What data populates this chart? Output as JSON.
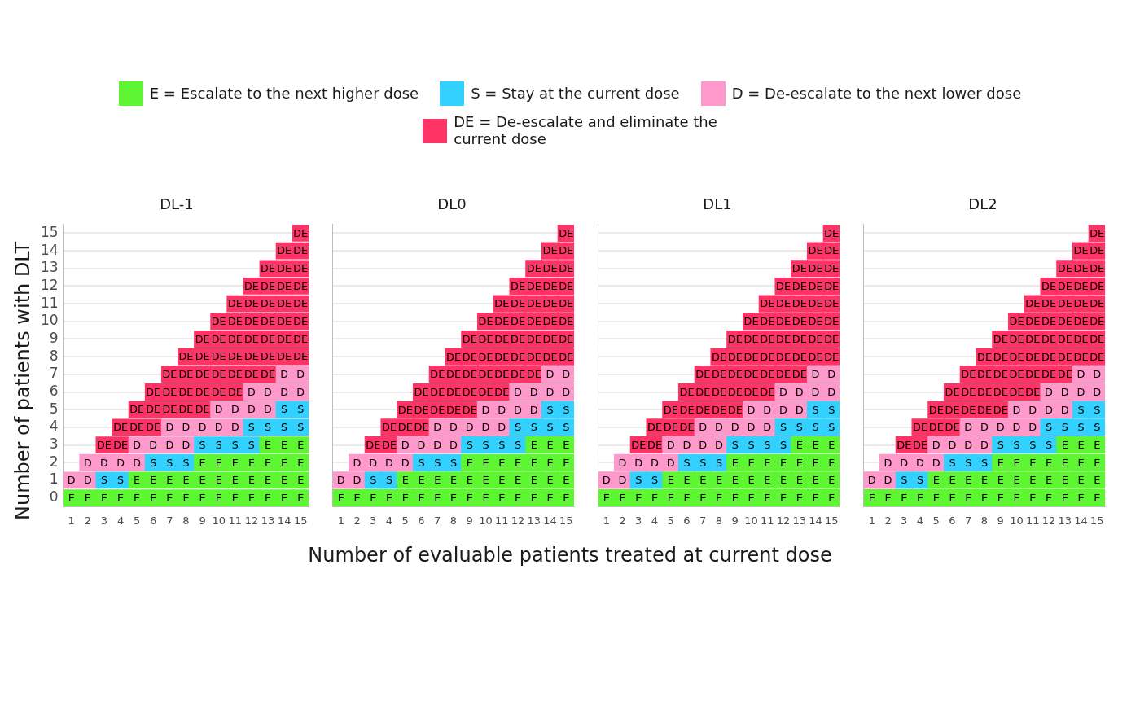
{
  "chart_data": [
    {
      "type": "scatter",
      "marker": "square",
      "title": "DL-1",
      "xlabel": "Number of evaluable patients treated at current dose",
      "ylabel": "Number of patients with DLT",
      "legend": "top",
      "grid": "y",
      "xlim": [
        0.5,
        15.5
      ],
      "xticks": [
        1,
        2,
        3,
        4,
        5,
        6,
        7,
        8,
        9,
        10,
        11,
        12,
        13,
        14,
        15
      ],
      "ylim": [
        -0.5,
        15.5
      ],
      "yticks": [
        0,
        1,
        2,
        3,
        4,
        5,
        6,
        7,
        8,
        9,
        10,
        11,
        12,
        13,
        14,
        15
      ],
      "series": [
        {
          "name": "E = Escalate to the next higher dose",
          "color": "#5ef532",
          "x": [
            1,
            2,
            3,
            4,
            5,
            5,
            6,
            6,
            7,
            7,
            8,
            8,
            9,
            9,
            9,
            10,
            10,
            10,
            11,
            11,
            11,
            12,
            12,
            12,
            13,
            13,
            13,
            13,
            14,
            14,
            14,
            14,
            15,
            15,
            15,
            15
          ],
          "values": [
            0,
            0,
            0,
            0,
            0,
            1,
            0,
            1,
            0,
            1,
            0,
            1,
            0,
            1,
            2,
            0,
            1,
            2,
            0,
            1,
            2,
            0,
            1,
            2,
            0,
            1,
            2,
            3,
            0,
            1,
            2,
            3,
            0,
            1,
            2,
            3
          ],
          "value_labels": [
            "E",
            "E",
            "E",
            "E",
            "E",
            "E",
            "E",
            "E",
            "E",
            "E",
            "E",
            "E",
            "E",
            "E",
            "E",
            "E",
            "E",
            "E",
            "E",
            "E",
            "E",
            "E",
            "E",
            "E",
            "E",
            "E",
            "E",
            "E",
            "E",
            "E",
            "E",
            "E",
            "E",
            "E",
            "E",
            "E"
          ]
        },
        {
          "name": "S = Stay at the current dose",
          "color": "#33d1ff",
          "x": [
            3,
            4,
            6,
            7,
            8,
            9,
            10,
            11,
            12,
            12,
            13,
            14,
            14,
            15,
            15
          ],
          "values": [
            1,
            1,
            2,
            2,
            2,
            3,
            3,
            3,
            3,
            4,
            4,
            4,
            5,
            4,
            5
          ],
          "value_labels": [
            "S",
            "S",
            "S",
            "S",
            "S",
            "S",
            "S",
            "S",
            "S",
            "S",
            "S",
            "S",
            "S",
            "S",
            "S"
          ]
        },
        {
          "name": "D = De-escalate to the next lower dose",
          "color": "#ff99cc",
          "x": [
            1,
            2,
            2,
            3,
            4,
            5,
            5,
            6,
            7,
            7,
            8,
            8,
            9,
            10,
            10,
            11,
            11,
            12,
            12,
            13,
            13,
            14,
            14,
            15,
            15
          ],
          "values": [
            1,
            1,
            2,
            2,
            2,
            2,
            3,
            3,
            3,
            4,
            3,
            4,
            4,
            4,
            5,
            4,
            5,
            5,
            6,
            5,
            6,
            6,
            7,
            6,
            7
          ],
          "value_labels": [
            "D",
            "D",
            "D",
            "D",
            "D",
            "D",
            "D",
            "D",
            "D",
            "D",
            "D",
            "D",
            "D",
            "D",
            "D",
            "D",
            "D",
            "D",
            "D",
            "D",
            "D",
            "D",
            "D",
            "D",
            "D"
          ]
        },
        {
          "name": "DE = De-escalate and eliminate the\ncurrent dose",
          "color": "#ff3366",
          "x": [
            3,
            4,
            4,
            5,
            5,
            6,
            6,
            6,
            7,
            7,
            7,
            8,
            8,
            8,
            8,
            9,
            9,
            9,
            9,
            9,
            10,
            10,
            10,
            10,
            10,
            11,
            11,
            11,
            11,
            11,
            11,
            12,
            12,
            12,
            12,
            12,
            12,
            13,
            13,
            13,
            13,
            13,
            13,
            13,
            14,
            14,
            14,
            14,
            14,
            14,
            14,
            15,
            15,
            15,
            15,
            15,
            15,
            15,
            15
          ],
          "values": [
            3,
            3,
            4,
            4,
            5,
            4,
            5,
            6,
            5,
            6,
            7,
            5,
            6,
            7,
            8,
            5,
            6,
            7,
            8,
            9,
            6,
            7,
            8,
            9,
            10,
            6,
            7,
            8,
            9,
            10,
            11,
            7,
            8,
            9,
            10,
            11,
            12,
            7,
            8,
            9,
            10,
            11,
            12,
            13,
            8,
            9,
            10,
            11,
            12,
            13,
            14,
            8,
            9,
            10,
            11,
            12,
            13,
            14,
            15
          ],
          "value_labels": [
            "DE",
            "DE",
            "DE",
            "DE",
            "DE",
            "DE",
            "DE",
            "DE",
            "DE",
            "DE",
            "DE",
            "DE",
            "DE",
            "DE",
            "DE",
            "DE",
            "DE",
            "DE",
            "DE",
            "DE",
            "DE",
            "DE",
            "DE",
            "DE",
            "DE",
            "DE",
            "DE",
            "DE",
            "DE",
            "DE",
            "DE",
            "DE",
            "DE",
            "DE",
            "DE",
            "DE",
            "DE",
            "DE",
            "DE",
            "DE",
            "DE",
            "DE",
            "DE",
            "DE",
            "DE",
            "DE",
            "DE",
            "DE",
            "DE",
            "DE",
            "DE",
            "DE",
            "DE",
            "DE",
            "DE",
            "DE",
            "DE",
            "DE",
            "DE"
          ]
        }
      ]
    },
    {
      "type": "scatter",
      "marker": "square",
      "title": "DL0",
      "grid": "y",
      "tick_labels": "x",
      "xlim": [
        0.5,
        15.5
      ],
      "xticks": [
        1,
        2,
        3,
        4,
        5,
        6,
        7,
        8,
        9,
        10,
        11,
        12,
        13,
        14,
        15
      ],
      "ylim": [
        -0.5,
        15.5
      ],
      "yticks": [
        0,
        1,
        2,
        3,
        4,
        5,
        6,
        7,
        8,
        9,
        10,
        11,
        12,
        13,
        14,
        15
      ],
      "series": [
        {
          "color": "#5ef532",
          "x": [
            1,
            2,
            3,
            4,
            5,
            5,
            6,
            6,
            7,
            7,
            8,
            8,
            9,
            9,
            9,
            10,
            10,
            10,
            11,
            11,
            11,
            12,
            12,
            12,
            13,
            13,
            13,
            13,
            14,
            14,
            14,
            14,
            15,
            15,
            15,
            15
          ],
          "values": [
            0,
            0,
            0,
            0,
            0,
            1,
            0,
            1,
            0,
            1,
            0,
            1,
            0,
            1,
            2,
            0,
            1,
            2,
            0,
            1,
            2,
            0,
            1,
            2,
            0,
            1,
            2,
            3,
            0,
            1,
            2,
            3,
            0,
            1,
            2,
            3
          ],
          "value_labels": [
            "E",
            "E",
            "E",
            "E",
            "E",
            "E",
            "E",
            "E",
            "E",
            "E",
            "E",
            "E",
            "E",
            "E",
            "E",
            "E",
            "E",
            "E",
            "E",
            "E",
            "E",
            "E",
            "E",
            "E",
            "E",
            "E",
            "E",
            "E",
            "E",
            "E",
            "E",
            "E",
            "E",
            "E",
            "E",
            "E"
          ]
        },
        {
          "color": "#33d1ff",
          "x": [
            3,
            4,
            6,
            7,
            8,
            9,
            10,
            11,
            12,
            12,
            13,
            14,
            14,
            15,
            15
          ],
          "values": [
            1,
            1,
            2,
            2,
            2,
            3,
            3,
            3,
            3,
            4,
            4,
            4,
            5,
            4,
            5
          ],
          "value_labels": [
            "S",
            "S",
            "S",
            "S",
            "S",
            "S",
            "S",
            "S",
            "S",
            "S",
            "S",
            "S",
            "S",
            "S",
            "S"
          ]
        },
        {
          "color": "#ff99cc",
          "x": [
            1,
            2,
            2,
            3,
            4,
            5,
            5,
            6,
            7,
            7,
            8,
            8,
            9,
            10,
            10,
            11,
            11,
            12,
            12,
            13,
            13,
            14,
            14,
            15,
            15
          ],
          "values": [
            1,
            1,
            2,
            2,
            2,
            2,
            3,
            3,
            3,
            4,
            3,
            4,
            4,
            4,
            5,
            4,
            5,
            5,
            6,
            5,
            6,
            6,
            7,
            6,
            7
          ],
          "value_labels": [
            "D",
            "D",
            "D",
            "D",
            "D",
            "D",
            "D",
            "D",
            "D",
            "D",
            "D",
            "D",
            "D",
            "D",
            "D",
            "D",
            "D",
            "D",
            "D",
            "D",
            "D",
            "D",
            "D",
            "D",
            "D"
          ]
        },
        {
          "color": "#ff3366",
          "x": [
            3,
            4,
            4,
            5,
            5,
            6,
            6,
            6,
            7,
            7,
            7,
            8,
            8,
            8,
            8,
            9,
            9,
            9,
            9,
            9,
            10,
            10,
            10,
            10,
            10,
            11,
            11,
            11,
            11,
            11,
            11,
            12,
            12,
            12,
            12,
            12,
            12,
            13,
            13,
            13,
            13,
            13,
            13,
            13,
            14,
            14,
            14,
            14,
            14,
            14,
            14,
            15,
            15,
            15,
            15,
            15,
            15,
            15,
            15
          ],
          "values": [
            3,
            3,
            4,
            4,
            5,
            4,
            5,
            6,
            5,
            6,
            7,
            5,
            6,
            7,
            8,
            5,
            6,
            7,
            8,
            9,
            6,
            7,
            8,
            9,
            10,
            6,
            7,
            8,
            9,
            10,
            11,
            7,
            8,
            9,
            10,
            11,
            12,
            7,
            8,
            9,
            10,
            11,
            12,
            13,
            8,
            9,
            10,
            11,
            12,
            13,
            14,
            8,
            9,
            10,
            11,
            12,
            13,
            14,
            15
          ],
          "value_labels": [
            "DE",
            "DE",
            "DE",
            "DE",
            "DE",
            "DE",
            "DE",
            "DE",
            "DE",
            "DE",
            "DE",
            "DE",
            "DE",
            "DE",
            "DE",
            "DE",
            "DE",
            "DE",
            "DE",
            "DE",
            "DE",
            "DE",
            "DE",
            "DE",
            "DE",
            "DE",
            "DE",
            "DE",
            "DE",
            "DE",
            "DE",
            "DE",
            "DE",
            "DE",
            "DE",
            "DE",
            "DE",
            "DE",
            "DE",
            "DE",
            "DE",
            "DE",
            "DE",
            "DE",
            "DE",
            "DE",
            "DE",
            "DE",
            "DE",
            "DE",
            "DE",
            "DE",
            "DE",
            "DE",
            "DE",
            "DE",
            "DE",
            "DE",
            "DE"
          ]
        }
      ]
    },
    {
      "type": "scatter",
      "marker": "square",
      "title": "DL1",
      "grid": "y",
      "tick_labels": "x",
      "xlim": [
        0.5,
        15.5
      ],
      "xticks": [
        1,
        2,
        3,
        4,
        5,
        6,
        7,
        8,
        9,
        10,
        11,
        12,
        13,
        14,
        15
      ],
      "ylim": [
        -0.5,
        15.5
      ],
      "yticks": [
        0,
        1,
        2,
        3,
        4,
        5,
        6,
        7,
        8,
        9,
        10,
        11,
        12,
        13,
        14,
        15
      ],
      "series": [
        {
          "color": "#5ef532",
          "x": [
            1,
            2,
            3,
            4,
            5,
            5,
            6,
            6,
            7,
            7,
            8,
            8,
            9,
            9,
            9,
            10,
            10,
            10,
            11,
            11,
            11,
            12,
            12,
            12,
            13,
            13,
            13,
            13,
            14,
            14,
            14,
            14,
            15,
            15,
            15,
            15
          ],
          "values": [
            0,
            0,
            0,
            0,
            0,
            1,
            0,
            1,
            0,
            1,
            0,
            1,
            0,
            1,
            2,
            0,
            1,
            2,
            0,
            1,
            2,
            0,
            1,
            2,
            0,
            1,
            2,
            3,
            0,
            1,
            2,
            3,
            0,
            1,
            2,
            3
          ],
          "value_labels": [
            "E",
            "E",
            "E",
            "E",
            "E",
            "E",
            "E",
            "E",
            "E",
            "E",
            "E",
            "E",
            "E",
            "E",
            "E",
            "E",
            "E",
            "E",
            "E",
            "E",
            "E",
            "E",
            "E",
            "E",
            "E",
            "E",
            "E",
            "E",
            "E",
            "E",
            "E",
            "E",
            "E",
            "E",
            "E",
            "E"
          ]
        },
        {
          "color": "#33d1ff",
          "x": [
            3,
            4,
            6,
            7,
            8,
            9,
            10,
            11,
            12,
            12,
            13,
            14,
            14,
            15,
            15
          ],
          "values": [
            1,
            1,
            2,
            2,
            2,
            3,
            3,
            3,
            3,
            4,
            4,
            4,
            5,
            4,
            5
          ],
          "value_labels": [
            "S",
            "S",
            "S",
            "S",
            "S",
            "S",
            "S",
            "S",
            "S",
            "S",
            "S",
            "S",
            "S",
            "S",
            "S"
          ]
        },
        {
          "color": "#ff99cc",
          "x": [
            1,
            2,
            2,
            3,
            4,
            5,
            5,
            6,
            7,
            7,
            8,
            8,
            9,
            10,
            10,
            11,
            11,
            12,
            12,
            13,
            13,
            14,
            14,
            15,
            15
          ],
          "values": [
            1,
            1,
            2,
            2,
            2,
            2,
            3,
            3,
            3,
            4,
            3,
            4,
            4,
            4,
            5,
            4,
            5,
            5,
            6,
            5,
            6,
            6,
            7,
            6,
            7
          ],
          "value_labels": [
            "D",
            "D",
            "D",
            "D",
            "D",
            "D",
            "D",
            "D",
            "D",
            "D",
            "D",
            "D",
            "D",
            "D",
            "D",
            "D",
            "D",
            "D",
            "D",
            "D",
            "D",
            "D",
            "D",
            "D",
            "D"
          ]
        },
        {
          "color": "#ff3366",
          "x": [
            3,
            4,
            4,
            5,
            5,
            6,
            6,
            6,
            7,
            7,
            7,
            8,
            8,
            8,
            8,
            9,
            9,
            9,
            9,
            9,
            10,
            10,
            10,
            10,
            10,
            11,
            11,
            11,
            11,
            11,
            11,
            12,
            12,
            12,
            12,
            12,
            12,
            13,
            13,
            13,
            13,
            13,
            13,
            13,
            14,
            14,
            14,
            14,
            14,
            14,
            14,
            15,
            15,
            15,
            15,
            15,
            15,
            15,
            15
          ],
          "values": [
            3,
            3,
            4,
            4,
            5,
            4,
            5,
            6,
            5,
            6,
            7,
            5,
            6,
            7,
            8,
            5,
            6,
            7,
            8,
            9,
            6,
            7,
            8,
            9,
            10,
            6,
            7,
            8,
            9,
            10,
            11,
            7,
            8,
            9,
            10,
            11,
            12,
            7,
            8,
            9,
            10,
            11,
            12,
            13,
            8,
            9,
            10,
            11,
            12,
            13,
            14,
            8,
            9,
            10,
            11,
            12,
            13,
            14,
            15
          ],
          "value_labels": [
            "DE",
            "DE",
            "DE",
            "DE",
            "DE",
            "DE",
            "DE",
            "DE",
            "DE",
            "DE",
            "DE",
            "DE",
            "DE",
            "DE",
            "DE",
            "DE",
            "DE",
            "DE",
            "DE",
            "DE",
            "DE",
            "DE",
            "DE",
            "DE",
            "DE",
            "DE",
            "DE",
            "DE",
            "DE",
            "DE",
            "DE",
            "DE",
            "DE",
            "DE",
            "DE",
            "DE",
            "DE",
            "DE",
            "DE",
            "DE",
            "DE",
            "DE",
            "DE",
            "DE",
            "DE",
            "DE",
            "DE",
            "DE",
            "DE",
            "DE",
            "DE",
            "DE",
            "DE",
            "DE",
            "DE",
            "DE",
            "DE",
            "DE",
            "DE"
          ]
        }
      ]
    },
    {
      "type": "scatter",
      "marker": "square",
      "title": "DL2",
      "grid": "y",
      "tick_labels": "x",
      "xlim": [
        0.5,
        15.5
      ],
      "xticks": [
        1,
        2,
        3,
        4,
        5,
        6,
        7,
        8,
        9,
        10,
        11,
        12,
        13,
        14,
        15
      ],
      "ylim": [
        -0.5,
        15.5
      ],
      "yticks": [
        0,
        1,
        2,
        3,
        4,
        5,
        6,
        7,
        8,
        9,
        10,
        11,
        12,
        13,
        14,
        15
      ],
      "series": [
        {
          "color": "#5ef532",
          "x": [
            1,
            2,
            3,
            4,
            5,
            5,
            6,
            6,
            7,
            7,
            8,
            8,
            9,
            9,
            9,
            10,
            10,
            10,
            11,
            11,
            11,
            12,
            12,
            12,
            13,
            13,
            13,
            13,
            14,
            14,
            14,
            14,
            15,
            15,
            15,
            15
          ],
          "values": [
            0,
            0,
            0,
            0,
            0,
            1,
            0,
            1,
            0,
            1,
            0,
            1,
            0,
            1,
            2,
            0,
            1,
            2,
            0,
            1,
            2,
            0,
            1,
            2,
            0,
            1,
            2,
            3,
            0,
            1,
            2,
            3,
            0,
            1,
            2,
            3
          ],
          "value_labels": [
            "E",
            "E",
            "E",
            "E",
            "E",
            "E",
            "E",
            "E",
            "E",
            "E",
            "E",
            "E",
            "E",
            "E",
            "E",
            "E",
            "E",
            "E",
            "E",
            "E",
            "E",
            "E",
            "E",
            "E",
            "E",
            "E",
            "E",
            "E",
            "E",
            "E",
            "E",
            "E",
            "E",
            "E",
            "E",
            "E"
          ]
        },
        {
          "color": "#33d1ff",
          "x": [
            3,
            4,
            6,
            7,
            8,
            9,
            10,
            11,
            12,
            12,
            13,
            14,
            14,
            15,
            15
          ],
          "values": [
            1,
            1,
            2,
            2,
            2,
            3,
            3,
            3,
            3,
            4,
            4,
            4,
            5,
            4,
            5
          ],
          "value_labels": [
            "S",
            "S",
            "S",
            "S",
            "S",
            "S",
            "S",
            "S",
            "S",
            "S",
            "S",
            "S",
            "S",
            "S",
            "S"
          ]
        },
        {
          "color": "#ff99cc",
          "x": [
            1,
            2,
            2,
            3,
            4,
            5,
            5,
            6,
            7,
            7,
            8,
            8,
            9,
            10,
            10,
            11,
            11,
            12,
            12,
            13,
            13,
            14,
            14,
            15,
            15
          ],
          "values": [
            1,
            1,
            2,
            2,
            2,
            2,
            3,
            3,
            3,
            4,
            3,
            4,
            4,
            4,
            5,
            4,
            5,
            5,
            6,
            5,
            6,
            6,
            7,
            6,
            7
          ],
          "value_labels": [
            "D",
            "D",
            "D",
            "D",
            "D",
            "D",
            "D",
            "D",
            "D",
            "D",
            "D",
            "D",
            "D",
            "D",
            "D",
            "D",
            "D",
            "D",
            "D",
            "D",
            "D",
            "D",
            "D",
            "D",
            "D"
          ]
        },
        {
          "color": "#ff3366",
          "x": [
            3,
            4,
            4,
            5,
            5,
            6,
            6,
            6,
            7,
            7,
            7,
            8,
            8,
            8,
            8,
            9,
            9,
            9,
            9,
            9,
            10,
            10,
            10,
            10,
            10,
            11,
            11,
            11,
            11,
            11,
            11,
            12,
            12,
            12,
            12,
            12,
            12,
            13,
            13,
            13,
            13,
            13,
            13,
            13,
            14,
            14,
            14,
            14,
            14,
            14,
            14,
            15,
            15,
            15,
            15,
            15,
            15,
            15,
            15
          ],
          "values": [
            3,
            3,
            4,
            4,
            5,
            4,
            5,
            6,
            5,
            6,
            7,
            5,
            6,
            7,
            8,
            5,
            6,
            7,
            8,
            9,
            6,
            7,
            8,
            9,
            10,
            6,
            7,
            8,
            9,
            10,
            11,
            7,
            8,
            9,
            10,
            11,
            12,
            7,
            8,
            9,
            10,
            11,
            12,
            13,
            8,
            9,
            10,
            11,
            12,
            13,
            14,
            8,
            9,
            10,
            11,
            12,
            13,
            14,
            15
          ],
          "value_labels": [
            "DE",
            "DE",
            "DE",
            "DE",
            "DE",
            "DE",
            "DE",
            "DE",
            "DE",
            "DE",
            "DE",
            "DE",
            "DE",
            "DE",
            "DE",
            "DE",
            "DE",
            "DE",
            "DE",
            "DE",
            "DE",
            "DE",
            "DE",
            "DE",
            "DE",
            "DE",
            "DE",
            "DE",
            "DE",
            "DE",
            "DE",
            "DE",
            "DE",
            "DE",
            "DE",
            "DE",
            "DE",
            "DE",
            "DE",
            "DE",
            "DE",
            "DE",
            "DE",
            "DE",
            "DE",
            "DE",
            "DE",
            "DE",
            "DE",
            "DE",
            "DE",
            "DE",
            "DE",
            "DE",
            "DE",
            "DE",
            "DE",
            "DE",
            "DE"
          ]
        }
      ]
    }
  ]
}
